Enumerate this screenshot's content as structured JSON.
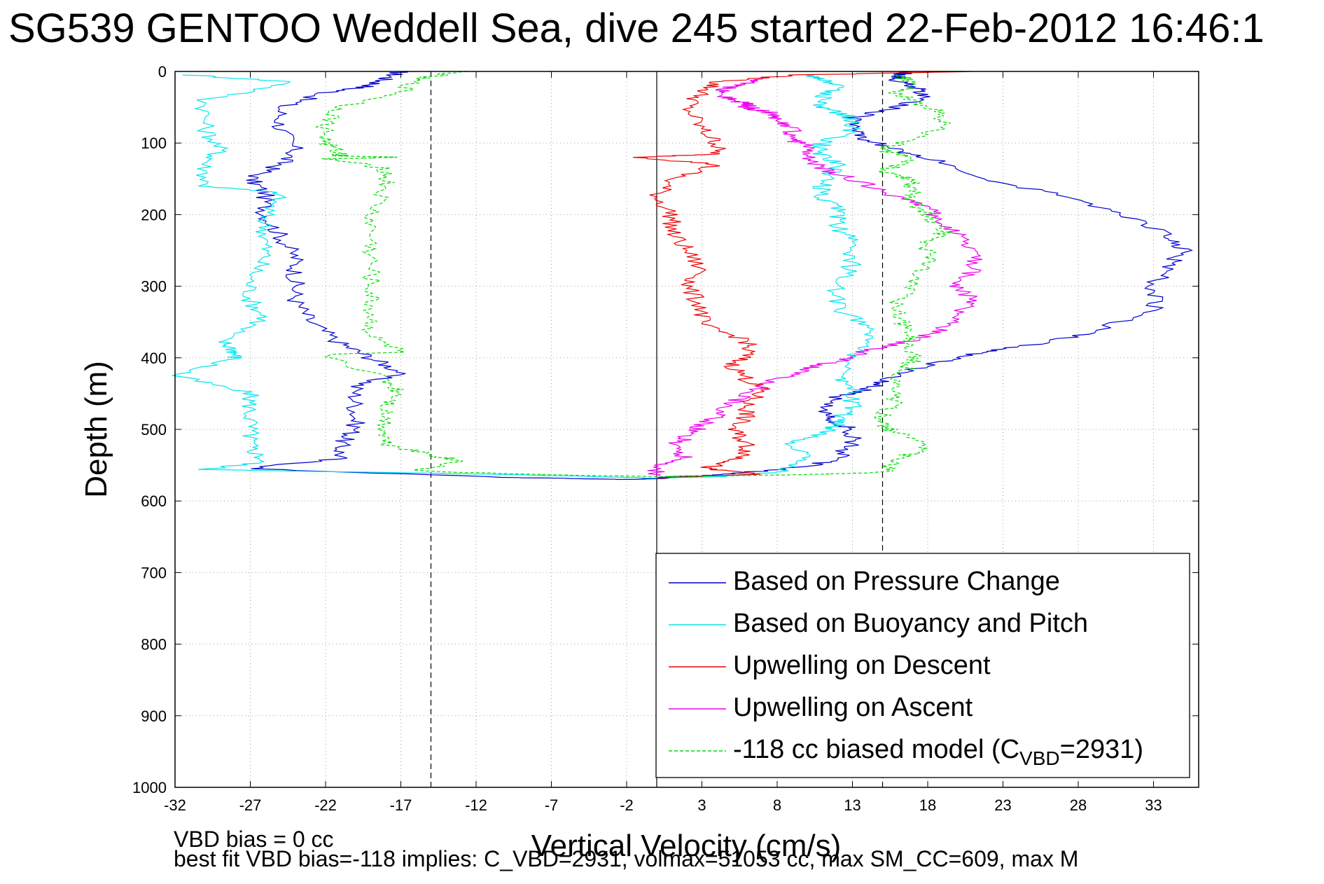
{
  "title": "SG539 GENTOO Weddell Sea, dive 245 started 22-Feb-2012 16:46:1",
  "footer": {
    "line1": "VBD bias = 0 cc",
    "line2": "best fit VBD bias=-118 implies: C_VBD=2931, volmax=51053 cc, max SM_CC=609, max M"
  },
  "chart_data": {
    "type": "line",
    "title": "SG539 GENTOO Weddell Sea, dive 245 started 22-Feb-2012 16:46:1",
    "xlabel": "Vertical Velocity (cm/s)",
    "ylabel": "Depth (m)",
    "xlim": [
      -32,
      36
    ],
    "ylim": [
      0,
      1000
    ],
    "y_reversed": true,
    "xticks": [
      -32,
      -27,
      -22,
      -17,
      -12,
      -7,
      -2,
      3,
      8,
      13,
      18,
      23,
      28,
      33
    ],
    "yticks": [
      0,
      100,
      200,
      300,
      400,
      500,
      600,
      700,
      800,
      900,
      1000
    ],
    "grid": true,
    "legend_position": "bottom-right",
    "reference_lines": [
      {
        "x": -15,
        "style": "dashed"
      },
      {
        "x": 0,
        "style": "solid"
      },
      {
        "x": 15,
        "style": "dashed"
      }
    ],
    "series": [
      {
        "name": "Based on Pressure Change",
        "color": "#0000cc",
        "style": "solid",
        "x": [
          -17,
          -18,
          -19,
          -22,
          -25,
          -25,
          -24,
          -25,
          -27,
          -26,
          -26,
          -25,
          -24,
          -24,
          -24,
          -23,
          -21,
          -19,
          -17,
          -20,
          -20,
          -20,
          -21,
          -21,
          -27,
          -10,
          -2,
          0,
          1,
          4,
          6,
          10,
          12,
          13,
          13,
          12,
          11,
          12,
          14,
          15,
          18,
          21,
          24,
          29,
          33,
          33,
          34,
          35,
          34,
          31,
          27,
          22,
          19,
          16,
          14,
          13,
          13,
          16,
          18,
          17,
          16,
          16,
          17
        ],
        "y": [
          0,
          10,
          20,
          30,
          50,
          80,
          110,
          130,
          150,
          170,
          200,
          230,
          260,
          290,
          320,
          350,
          380,
          400,
          420,
          440,
          470,
          500,
          520,
          540,
          555,
          567,
          570,
          569,
          566,
          564,
          560,
          552,
          540,
          520,
          500,
          490,
          475,
          455,
          445,
          430,
          410,
          395,
          385,
          365,
          330,
          300,
          270,
          250,
          230,
          200,
          175,
          150,
          125,
          110,
          95,
          80,
          65,
          50,
          35,
          20,
          12,
          5,
          0
        ]
      },
      {
        "name": "Based on Buoyancy and Pitch",
        "color": "#00e5ee",
        "style": "solid",
        "x": [
          -31,
          -24,
          -30,
          -30,
          -29,
          -30,
          -30,
          -25,
          -26,
          -26,
          -26,
          -27,
          -27,
          -26,
          -29,
          -28,
          -28,
          -32,
          -27,
          -27,
          -27,
          -27,
          -26,
          -30,
          -10,
          -4,
          0,
          4,
          8,
          10,
          9,
          11,
          12,
          12,
          13,
          13,
          12,
          13,
          14,
          14,
          12,
          12,
          13,
          13,
          12,
          12,
          11,
          11,
          12,
          11,
          11,
          13,
          13,
          11,
          11,
          12,
          11,
          10
        ],
        "y": [
          5,
          15,
          40,
          80,
          110,
          130,
          160,
          170,
          200,
          230,
          260,
          290,
          320,
          345,
          375,
          390,
          400,
          425,
          450,
          475,
          505,
          525,
          545,
          556,
          563,
          566,
          568,
          566,
          560,
          540,
          520,
          505,
          495,
          485,
          470,
          445,
          425,
          400,
          380,
          355,
          330,
          300,
          270,
          240,
          215,
          195,
          175,
          155,
          130,
          115,
          100,
          80,
          65,
          50,
          35,
          20,
          10,
          5
        ]
      },
      {
        "name": "Upwelling on Descent",
        "color": "#ee0000",
        "style": "solid",
        "x": [
          21,
          9,
          4,
          3,
          2,
          3,
          4,
          4,
          -1,
          4,
          1,
          0,
          1,
          1,
          2,
          3,
          2,
          3,
          3,
          6,
          6,
          5,
          6,
          7,
          6,
          6,
          5,
          6,
          6,
          5,
          3,
          7,
          0
        ],
        "y": [
          0,
          5,
          15,
          30,
          50,
          80,
          100,
          115,
          120,
          130,
          150,
          175,
          200,
          225,
          250,
          280,
          300,
          330,
          355,
          375,
          395,
          410,
          430,
          445,
          465,
          480,
          500,
          520,
          535,
          545,
          555,
          562,
          568
        ]
      },
      {
        "name": "Upwelling on Ascent",
        "color": "#ee00ee",
        "style": "solid",
        "x": [
          0,
          0,
          2,
          1,
          2,
          3,
          4,
          5,
          6,
          8,
          10,
          12,
          14,
          17,
          19,
          20,
          21,
          20,
          21,
          21,
          20,
          19,
          18,
          16,
          13,
          11,
          10,
          10,
          9,
          9,
          8,
          8,
          7,
          6,
          6,
          5,
          4,
          5,
          6,
          7
        ],
        "y": [
          565,
          550,
          540,
          525,
          510,
          495,
          480,
          465,
          450,
          430,
          415,
          405,
          390,
          375,
          360,
          340,
          320,
          300,
          280,
          255,
          230,
          210,
          190,
          175,
          150,
          135,
          120,
          105,
          95,
          80,
          70,
          60,
          55,
          50,
          45,
          40,
          30,
          20,
          15,
          10
        ]
      },
      {
        "name": "-118 cc biased model (C_VBD=2931)",
        "color": "#00dd00",
        "style": "dashed",
        "x": [
          -13,
          -16,
          -17,
          -21,
          -22,
          -22,
          -21,
          -21,
          -17,
          -22,
          -18,
          -18,
          -19,
          -19,
          -19,
          -19,
          -19,
          -19,
          -17,
          -22,
          -18,
          -17,
          -18,
          -18,
          -18,
          -15,
          -13,
          -16,
          -8,
          0,
          4,
          10,
          15,
          16,
          18,
          16,
          15,
          15,
          16,
          16,
          17,
          17,
          17,
          16,
          16,
          17,
          18,
          18,
          19,
          18,
          17,
          17,
          17,
          15,
          17,
          15,
          16,
          19,
          19,
          17,
          16,
          17,
          16
        ],
        "y": [
          0,
          10,
          30,
          50,
          75,
          100,
          115,
          118,
          120,
          122,
          135,
          160,
          200,
          240,
          280,
          310,
          340,
          370,
          392,
          395,
          430,
          450,
          470,
          500,
          520,
          535,
          545,
          558,
          563,
          566,
          565,
          563,
          560,
          540,
          525,
          505,
          495,
          480,
          455,
          430,
          405,
          385,
          370,
          345,
          320,
          300,
          265,
          240,
          225,
          200,
          185,
          165,
          150,
          140,
          120,
          110,
          100,
          80,
          60,
          40,
          30,
          15,
          5
        ]
      }
    ]
  }
}
